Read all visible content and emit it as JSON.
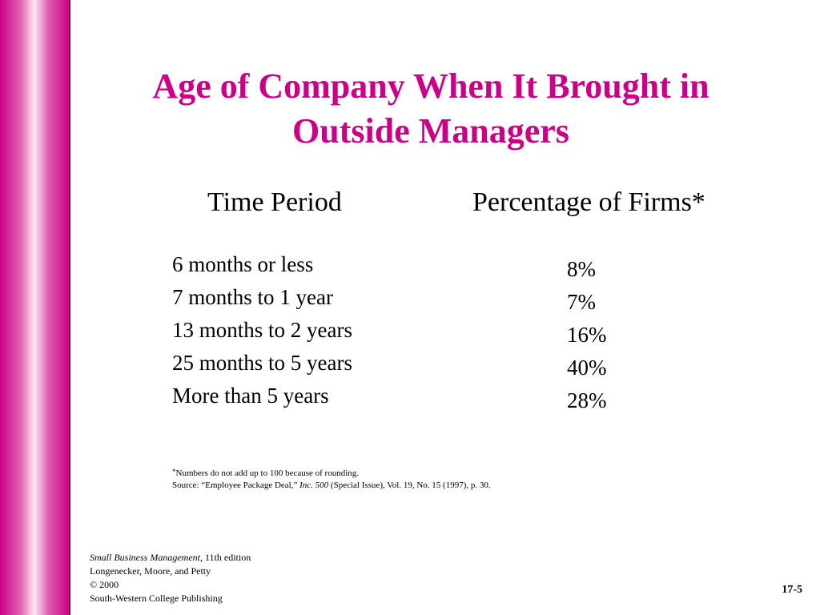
{
  "slide": {
    "title_line1": "Age of Company When It Brought in",
    "title_line2": "Outside Managers",
    "accent_color": "#cc0088"
  },
  "table": {
    "headers": {
      "time_period": "Time Period",
      "percentage": "Percentage of Firms*"
    },
    "rows": [
      {
        "period": "6 months or less",
        "percentage": "8%"
      },
      {
        "period": "7 months to 1 year",
        "percentage": "7%"
      },
      {
        "period": "13 months to 2 years",
        "percentage": "16%"
      },
      {
        "period": "25 months to 5 years",
        "percentage": "40%"
      },
      {
        "period": "More than 5 years",
        "percentage": "28%"
      }
    ]
  },
  "footnote": {
    "asterisk": "*",
    "note": "Numbers do not add up to 100 because of rounding.",
    "source_prefix": "Source: “Employee Package Deal,” ",
    "source_journal": "Inc. 500",
    "source_suffix": " (Special Issue), Vol. 19, No. 15 (1997), p. 30."
  },
  "credits": {
    "book_title": "Small Business Management",
    "edition": ", 11th edition",
    "authors": "Longenecker, Moore, and Petty",
    "copyright": "©  2000",
    "publisher": "South-Western College Publishing"
  },
  "page_number": "17-5"
}
